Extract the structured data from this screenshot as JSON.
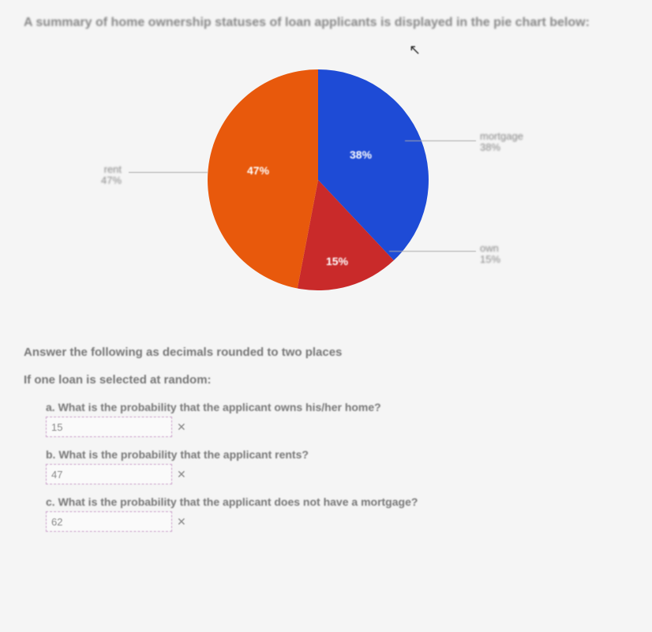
{
  "intro": "A summary of home ownership statuses of loan applicants is displayed in the pie chart below:",
  "chart": {
    "type": "pie",
    "slices": [
      {
        "label": "mortgage",
        "value": 38,
        "pct_label": "38%",
        "color": "#1e4bd6",
        "legend_sub": "38%"
      },
      {
        "label": "own",
        "value": 15,
        "pct_label": "15%",
        "color": "#c92a2a",
        "legend_sub": "15%"
      },
      {
        "label": "rent",
        "value": 47,
        "pct_label": "47%",
        "color": "#e8590c",
        "legend_sub": "47%"
      }
    ],
    "background_color": "#f5f5f5",
    "diameter": 280
  },
  "questions": {
    "instruction": "Answer the following as decimals rounded to two places",
    "sub_instruction": "If one loan is selected at random:",
    "items": [
      {
        "letter": "a.",
        "text": "What is the probability that the applicant owns his/her home?",
        "value": "15"
      },
      {
        "letter": "b.",
        "text": "What is the probability that the applicant rents?",
        "value": "47"
      },
      {
        "letter": "c.",
        "text": "What is the probability that the applicant does not have a mortgage?",
        "value": "62"
      }
    ]
  },
  "x_mark": "✕"
}
